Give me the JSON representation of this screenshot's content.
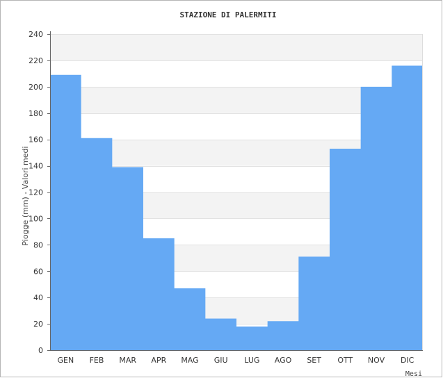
{
  "colors": {
    "bar": "#65a9f4",
    "band_alt": "#f3f3f3",
    "band_base": "#ffffff",
    "grid": "#e2e2e2",
    "axis": "#666666",
    "text": "#333333"
  },
  "chart_data": {
    "type": "area",
    "step": true,
    "title": "STAZIONE DI PALERMITI",
    "xlabel": "Mesi",
    "ylabel": "Piogge (mm) - Valori medi",
    "categories": [
      "GEN",
      "FEB",
      "MAR",
      "APR",
      "MAG",
      "GIU",
      "LUG",
      "AGO",
      "SET",
      "OTT",
      "NOV",
      "DIC"
    ],
    "series": [
      {
        "values": [
          209,
          161,
          139,
          85,
          47,
          24,
          18,
          22,
          71,
          153,
          200,
          216
        ]
      }
    ],
    "ylim": [
      0,
      240
    ],
    "yticks": [
      0,
      20,
      40,
      60,
      80,
      100,
      120,
      140,
      160,
      180,
      200,
      220,
      240
    ],
    "grid": true,
    "legend": "none"
  }
}
